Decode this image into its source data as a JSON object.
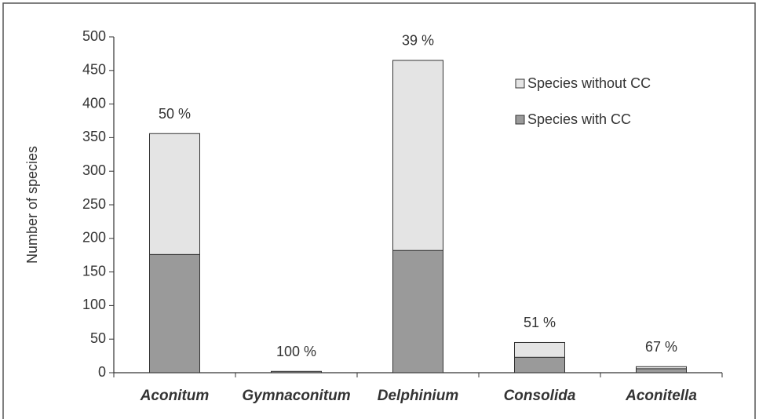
{
  "chart_data": {
    "type": "stacked_bar",
    "ylabel": "Number of species",
    "categories": [
      "Aconitum",
      "Gymnaconitum",
      "Delphinium",
      "Consolida",
      "Aconitella"
    ],
    "series": [
      {
        "name": "Species with CC",
        "color": "#9a9a9a",
        "values": [
          176,
          2,
          182,
          23,
          6
        ]
      },
      {
        "name": "Species without CC",
        "color": "#e4e4e4",
        "values": [
          180,
          0,
          283,
          22,
          3
        ]
      }
    ],
    "annotations": [
      "50 %",
      "100 %",
      "39 %",
      "51 %",
      "67 %"
    ],
    "ylim": [
      0,
      500
    ],
    "yticks": [
      0,
      50,
      100,
      150,
      200,
      250,
      300,
      350,
      400,
      450,
      500
    ],
    "grid": false,
    "legend": "upper right"
  }
}
